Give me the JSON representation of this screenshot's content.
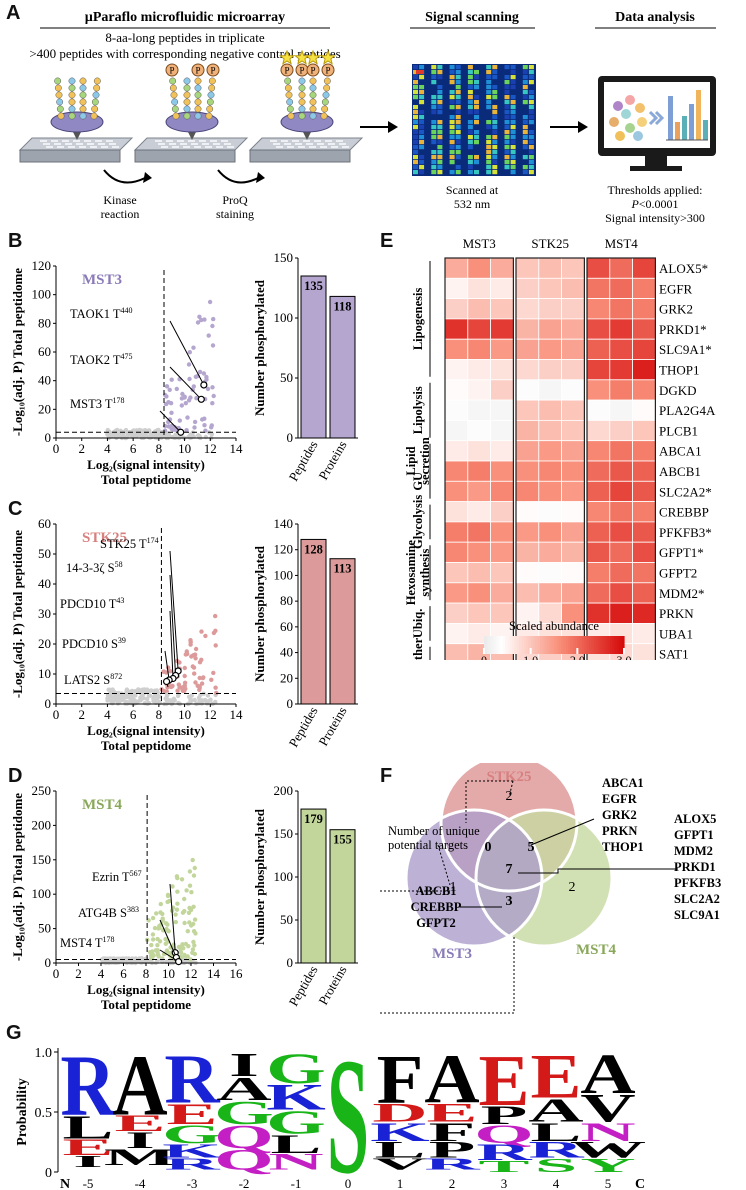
{
  "panels": {
    "A": "A",
    "B": "B",
    "C": "C",
    "D": "D",
    "E": "E",
    "F": "F",
    "G": "G"
  },
  "panelA": {
    "microarray_title": "µParaflo microfluidic microarray",
    "line1": "8-aa-long peptides in triplicate",
    "line2": ">400 peptides with corresponding negative control peptides",
    "kinase_label": "Kinase\nreaction",
    "proq_label": "ProQ\nstaining",
    "p_mark": "P",
    "signal_title": "Signal scanning",
    "scanned_label": "Scanned at\n532 nm",
    "analysis_title": "Data analysis",
    "thresholds": "Thresholds applied:",
    "p_threshold_prefix": "P",
    "p_threshold_value": "<0.0001",
    "signal_threshold": "Signal intensity>300"
  },
  "chart_data": [
    {
      "id": "B-volcano",
      "type": "scatter",
      "title": "MST3",
      "xlabel": "Log₂(signal intensity)",
      "xlabel2": "Total peptidome",
      "ylabel": "-Log₁₀(adj. P) Total peptidome",
      "xlim": [
        0,
        14
      ],
      "ylim": [
        0,
        120
      ],
      "xticks": [
        "0",
        "2",
        "4",
        "6",
        "8",
        "10",
        "12",
        "14"
      ],
      "yticks": [
        "0",
        "20",
        "40",
        "60",
        "80",
        "100",
        "120"
      ],
      "vline": 8.4,
      "hline": 4,
      "annotations": [
        {
          "label": "TAOK1 T",
          "sup": "440",
          "point": [
            11.5,
            37
          ]
        },
        {
          "label": "TAOK2 T",
          "sup": "475",
          "point": [
            11.3,
            27
          ]
        },
        {
          "label": "MST3 T",
          "sup": "178",
          "point": [
            9.7,
            4
          ]
        }
      ],
      "color": "#b4a6cf"
    },
    {
      "id": "B-bar",
      "type": "bar",
      "ylabel": "Number phosphorylated",
      "categories": [
        "Peptides",
        "Proteins"
      ],
      "values": [
        135,
        118
      ],
      "ylim": [
        0,
        150
      ],
      "yticks": [
        "0",
        "50",
        "100",
        "150"
      ],
      "color": "#b4a6cf"
    },
    {
      "id": "C-volcano",
      "type": "scatter",
      "title": "STK25",
      "xlabel": "Log₂(signal intensity)",
      "xlabel2": "Total peptidome",
      "ylabel": "-Log₁₀(adj. P) Total peptidome",
      "xlim": [
        0,
        14
      ],
      "ylim": [
        0,
        60
      ],
      "xticks": [
        "0",
        "2",
        "4",
        "6",
        "8",
        "10",
        "12",
        "14"
      ],
      "yticks": [
        "0",
        "10",
        "20",
        "30",
        "40",
        "50",
        "60"
      ],
      "vline": 8.2,
      "hline": 3.5,
      "annotations": [
        {
          "label": "STK25 T",
          "sup": "174",
          "point": [
            9.5,
            11
          ]
        },
        {
          "label": "14-3-3ζ S",
          "sup": "58",
          "point": [
            9.3,
            9.5
          ]
        },
        {
          "label": "PDCD10 T",
          "sup": "43",
          "point": [
            9.1,
            8.5
          ]
        },
        {
          "label": "PDCD10 S",
          "sup": "39",
          "point": [
            8.8,
            8
          ]
        },
        {
          "label": "LATS2 S",
          "sup": "872",
          "point": [
            8.6,
            7.5
          ]
        }
      ],
      "color": "#dd9a9a"
    },
    {
      "id": "C-bar",
      "type": "bar",
      "ylabel": "Number phosphorylated",
      "categories": [
        "Peptides",
        "Proteins"
      ],
      "values": [
        128,
        113
      ],
      "ylim": [
        0,
        140
      ],
      "yticks": [
        "0",
        "20",
        "40",
        "60",
        "80",
        "100",
        "120",
        "140"
      ],
      "color": "#dd9a9a"
    },
    {
      "id": "D-volcano",
      "type": "scatter",
      "title": "MST4",
      "xlabel": "Log₂(signal intensity)",
      "xlabel2": "Total peptidome",
      "ylabel": "-Log₁₀(adj. P) Total peptidome",
      "xlim": [
        0,
        16
      ],
      "ylim": [
        0,
        250
      ],
      "xticks": [
        "0",
        "2",
        "4",
        "6",
        "8",
        "10",
        "12",
        "14",
        "16"
      ],
      "yticks": [
        "0",
        "50",
        "100",
        "150",
        "200",
        "250"
      ],
      "vline": 8.1,
      "hline": 5,
      "annotations": [
        {
          "label": "Ezrin T",
          "sup": "567",
          "point": [
            10.6,
            15
          ]
        },
        {
          "label": "ATG4B S",
          "sup": "383",
          "point": [
            10.7,
            8
          ]
        },
        {
          "label": "MST4 T",
          "sup": "178",
          "point": [
            10.9,
            2
          ]
        }
      ],
      "color": "#c2d69c"
    },
    {
      "id": "D-bar",
      "type": "bar",
      "ylabel": "Number phosphorylated",
      "categories": [
        "Peptides",
        "Proteins"
      ],
      "values": [
        179,
        155
      ],
      "ylim": [
        0,
        200
      ],
      "yticks": [
        "0",
        "50",
        "100",
        "150",
        "200"
      ],
      "color": "#c2d69c"
    },
    {
      "id": "E-heatmap",
      "type": "heatmap",
      "columns": [
        "MST3",
        "STK25",
        "MST4"
      ],
      "rows": [
        "ALOX5*",
        "EGFR",
        "GRK2",
        "PRKD1*",
        "SLC9A1*",
        "THOP1",
        "DGKD",
        "PLA2G4A",
        "PLCB1",
        "ABCA1",
        "ABCB1",
        "SLC2A2*",
        "CREBBP",
        "PFKFB3*",
        "GFPT1*",
        "GFPT2",
        "MDM2*",
        "PRKN",
        "UBA1",
        "SAT1"
      ],
      "groups": [
        {
          "label": "Lipogenesis",
          "from": 0,
          "to": 5
        },
        {
          "label": "Lipolysis",
          "from": 6,
          "to": 8
        },
        {
          "label": "Lipid\nsecretion",
          "from": 9,
          "to": 10
        },
        {
          "label": "GU",
          "from": 10,
          "to": 11
        },
        {
          "label": "Glycolysis",
          "from": 12,
          "to": 13
        },
        {
          "label": "Hexosamine\nsynthesis",
          "from": 14,
          "to": 16
        },
        {
          "label": "Ubiq.",
          "from": 17,
          "to": 18
        },
        {
          "label": "Other",
          "from": 19,
          "to": 19
        }
      ],
      "legend_title": "Scaled abundance",
      "legend_ticks": [
        "0",
        "1.0",
        "2.0",
        "3.0"
      ],
      "scale": [
        0,
        3
      ],
      "values": {
        "MST3": [
          [
            1.3,
            1.6,
            1.3
          ],
          [
            0.5,
            0.7,
            0.6
          ],
          [
            0.9,
            1.1,
            1.0
          ],
          [
            2.6,
            2.4,
            2.5
          ],
          [
            1.6,
            1.7,
            1.5
          ],
          [
            0.5,
            0.6,
            0.7
          ],
          [
            0.4,
            0.5,
            0.9
          ],
          [
            0.3,
            0.2,
            0.2
          ],
          [
            0.2,
            0.3,
            0.2
          ],
          [
            0.6,
            0.7,
            0.6
          ],
          [
            1.7,
            1.8,
            1.6
          ],
          [
            1.6,
            1.5,
            1.7
          ],
          [
            0.7,
            0.6,
            0.9
          ],
          [
            1.8,
            1.9,
            1.6
          ],
          [
            1.7,
            1.6,
            1.5
          ],
          [
            1.0,
            1.1,
            1.0
          ],
          [
            1.5,
            1.6,
            1.3
          ],
          [
            0.9,
            1.0,
            1.0
          ],
          [
            0.5,
            0.6,
            0.5
          ],
          [
            1.1,
            1.2,
            1.1
          ]
        ],
        "STK25": [
          [
            1.0,
            1.1,
            1.0
          ],
          [
            0.9,
            1.0,
            1.1
          ],
          [
            0.8,
            0.9,
            0.9
          ],
          [
            1.2,
            1.4,
            1.3
          ],
          [
            1.4,
            1.5,
            1.4
          ],
          [
            0.8,
            0.9,
            0.9
          ],
          [
            0.3,
            0.2,
            0.3
          ],
          [
            1.0,
            1.1,
            1.0
          ],
          [
            1.2,
            1.1,
            1.0
          ],
          [
            1.4,
            1.5,
            1.4
          ],
          [
            1.6,
            1.7,
            1.6
          ],
          [
            1.7,
            1.6,
            1.5
          ],
          [
            0.4,
            0.3,
            0.4
          ],
          [
            1.5,
            1.6,
            1.4
          ],
          [
            1.2,
            1.3,
            1.2
          ],
          [
            0.4,
            0.3,
            0.4
          ],
          [
            1.1,
            1.3,
            1.4
          ],
          [
            0.5,
            0.8,
            1.6
          ],
          [
            0.6,
            0.7,
            0.7
          ],
          [
            0.8,
            0.9,
            1.0
          ]
        ],
        "MST4": [
          [
            2.3,
            2.0,
            2.4
          ],
          [
            1.9,
            2.0,
            1.8
          ],
          [
            1.7,
            1.9,
            1.8
          ],
          [
            2.3,
            2.5,
            2.2
          ],
          [
            2.1,
            2.3,
            2.4
          ],
          [
            2.4,
            2.5,
            2.8
          ],
          [
            1.6,
            1.8,
            1.7
          ],
          [
            0.3,
            0.2,
            0.4
          ],
          [
            0.8,
            0.9,
            1.0
          ],
          [
            1.7,
            1.9,
            1.8
          ],
          [
            2.0,
            2.2,
            2.1
          ],
          [
            2.1,
            2.4,
            2.2
          ],
          [
            1.7,
            1.9,
            1.8
          ],
          [
            2.1,
            2.3,
            2.2
          ],
          [
            2.2,
            2.0,
            2.3
          ],
          [
            1.8,
            2.0,
            1.9
          ],
          [
            2.0,
            2.3,
            2.1
          ],
          [
            2.6,
            2.8,
            2.7
          ],
          [
            0.6,
            0.7,
            0.6
          ],
          [
            0.7,
            0.8,
            0.7
          ]
        ]
      }
    },
    {
      "id": "F-venn",
      "type": "venn",
      "sets": [
        "MST3",
        "STK25",
        "MST4"
      ],
      "regions": {
        "MST3_only": "1",
        "STK25_only": "2",
        "MST4_only": "2",
        "MST3_STK25": "0",
        "STK25_MST4": "5",
        "MST3_MST4": "3",
        "all": "7"
      },
      "annotation": "Number of unique\npotential targets",
      "list_stk25_mst4": [
        "ABCA1",
        "EGFR",
        "GRK2",
        "PRKN",
        "THOP1"
      ],
      "list_all": [
        "ALOX5",
        "GFPT1",
        "MDM2",
        "PRKD1",
        "PFKFB3",
        "SLC2A2",
        "SLC9A1"
      ],
      "list_mst3_mst4": [
        "ABCB1",
        "CREBBP",
        "GFPT2"
      ],
      "colors": {
        "MST3": "#ad9fcb",
        "STK25": "#df9b9b",
        "MST4": "#c5d9a0"
      }
    },
    {
      "id": "G-logo",
      "type": "sequence-logo",
      "ylabel": "Probability",
      "yticks": [
        "0",
        "0.5",
        "1.0"
      ],
      "positions": [
        "-5",
        "-4",
        "-3",
        "-2",
        "-1",
        "0",
        "1",
        "2",
        "3",
        "4",
        "5"
      ],
      "n_label": "N",
      "c_label": "C",
      "columns": [
        [
          [
            "R",
            0.52
          ],
          [
            "L",
            0.2
          ],
          [
            "E",
            0.14
          ],
          [
            "I",
            0.1
          ]
        ],
        [
          [
            "A",
            0.52
          ],
          [
            "E",
            0.14
          ],
          [
            "I",
            0.14
          ],
          [
            "M",
            0.14
          ]
        ],
        [
          [
            "R",
            0.42
          ],
          [
            "E",
            0.18
          ],
          [
            "G",
            0.16
          ],
          [
            "K",
            0.12
          ],
          [
            "R",
            0.1
          ]
        ],
        [
          [
            "I",
            0.2
          ],
          [
            "A",
            0.2
          ],
          [
            "G",
            0.2
          ],
          [
            "Q",
            0.2
          ],
          [
            "Q",
            0.18
          ]
        ],
        [
          [
            "G",
            0.26
          ],
          [
            "K",
            0.22
          ],
          [
            "G",
            0.2
          ],
          [
            "L",
            0.16
          ],
          [
            "N",
            0.14
          ]
        ],
        [
          [
            "S",
            1.0
          ]
        ],
        [
          [
            "F",
            0.42
          ],
          [
            "D",
            0.16
          ],
          [
            "K",
            0.16
          ],
          [
            "L",
            0.14
          ],
          [
            "V",
            0.1
          ]
        ],
        [
          [
            "A",
            0.42
          ],
          [
            "E",
            0.16
          ],
          [
            "F",
            0.16
          ],
          [
            "P",
            0.14
          ],
          [
            "R",
            0.1
          ]
        ],
        [
          [
            "E",
            0.44
          ],
          [
            "P",
            0.16
          ],
          [
            "Q",
            0.16
          ],
          [
            "R",
            0.14
          ],
          [
            "T",
            0.1
          ]
        ],
        [
          [
            "E",
            0.38
          ],
          [
            "A",
            0.2
          ],
          [
            "L",
            0.16
          ],
          [
            "R",
            0.14
          ],
          [
            "S",
            0.12
          ]
        ],
        [
          [
            "A",
            0.34
          ],
          [
            "V",
            0.24
          ],
          [
            "N",
            0.16
          ],
          [
            "W",
            0.14
          ],
          [
            "Y",
            0.12
          ]
        ]
      ],
      "aa_colors": {
        "R": "#1a22d6",
        "K": "#1a22d6",
        "H": "#1a22d6",
        "A": "#000000",
        "L": "#000000",
        "I": "#000000",
        "V": "#000000",
        "F": "#000000",
        "M": "#000000",
        "W": "#000000",
        "P": "#000000",
        "G": "#18b418",
        "S": "#18b418",
        "T": "#18b418",
        "Y": "#18b418",
        "C": "#18b418",
        "E": "#d41919",
        "D": "#d41919",
        "Q": "#c41fc4",
        "N": "#c41fc4"
      }
    }
  ]
}
